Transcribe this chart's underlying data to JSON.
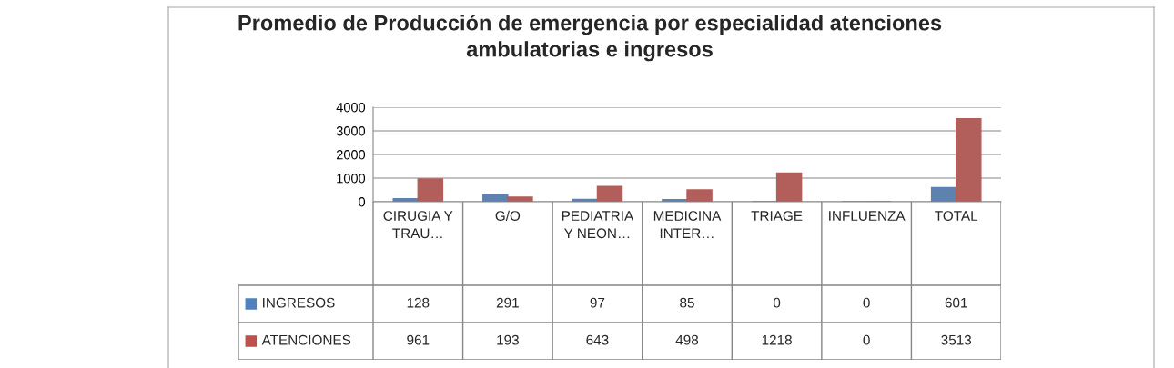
{
  "chart_data": {
    "type": "bar",
    "title": "Promedio de Producción de emergencia por especialidad atenciones ambulatorias e ingresos",
    "categories": [
      "CIRUGIA Y TRAU…",
      "G/O",
      "PEDIATRIA Y NEON…",
      "MEDICINA INTER…",
      "TRIAGE",
      "INFLUENZA",
      "TOTAL"
    ],
    "series": [
      {
        "name": "INGRESOS",
        "color": "#4f81bd",
        "values": [
          128,
          291,
          97,
          85,
          0,
          0,
          601
        ]
      },
      {
        "name": "ATENCIONES",
        "color": "#c0504d",
        "values": [
          961,
          193,
          643,
          498,
          1218,
          0,
          3513
        ]
      }
    ],
    "ylim": [
      0,
      4000
    ],
    "yticks": [
      0,
      1000,
      2000,
      3000,
      4000
    ],
    "grid": "y",
    "legend": "bottom left",
    "data_labels": true
  }
}
